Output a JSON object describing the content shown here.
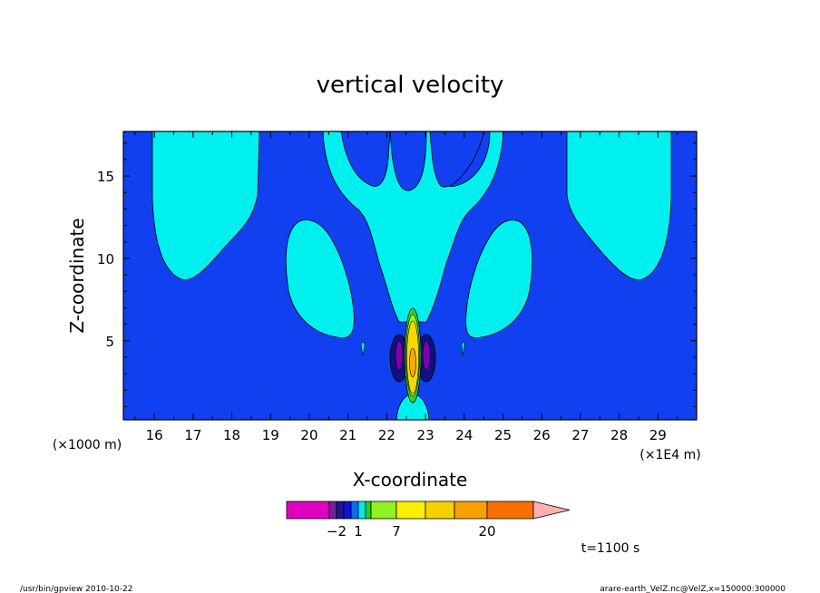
{
  "chart_data": {
    "type": "contour",
    "title": "vertical velocity",
    "xlabel": "X-coordinate",
    "ylabel": "Z-coordinate",
    "x_unit_label": "(×1E4 m)",
    "y_unit_label": "(×1000 m)",
    "xlim": [
      15.2,
      30
    ],
    "ylim": [
      0.2,
      17.7
    ],
    "x_ticks": [
      16,
      17,
      18,
      19,
      20,
      21,
      22,
      23,
      24,
      25,
      26,
      27,
      28,
      29
    ],
    "y_ticks": [
      5,
      10,
      15
    ],
    "time_label": "t=1100 s",
    "colorbar": {
      "tick_labels": [
        {
          "value": -2,
          "label": "−2"
        },
        {
          "value": 1,
          "label": "1"
        },
        {
          "value": 7,
          "label": "7"
        },
        {
          "value": 20,
          "label": "20"
        }
      ],
      "colors": [
        "#e000c0",
        "#7a1ea0",
        "#1a1a8c",
        "#1010e0",
        "#0a6cf0",
        "#00e8f0",
        "#20d020",
        "#90f020",
        "#f8f000",
        "#f8d000",
        "#f8a000",
        "#f87000",
        "#f81818",
        "#fa8080",
        "#ffb0b0"
      ]
    }
  },
  "footer": {
    "left": "/usr/bin/gpview  2010-10-22",
    "right": "arare-earth_VelZ.nc@VelZ,x=150000:300000"
  },
  "colors": {
    "background": "#1040f0",
    "cyan": "#00f0f0",
    "purple_neg": "#8000b0",
    "dark_blue_neg": "#101080",
    "green": "#30d030",
    "light_green": "#a0f020",
    "yellow": "#f8d800",
    "orange": "#f8a800"
  }
}
